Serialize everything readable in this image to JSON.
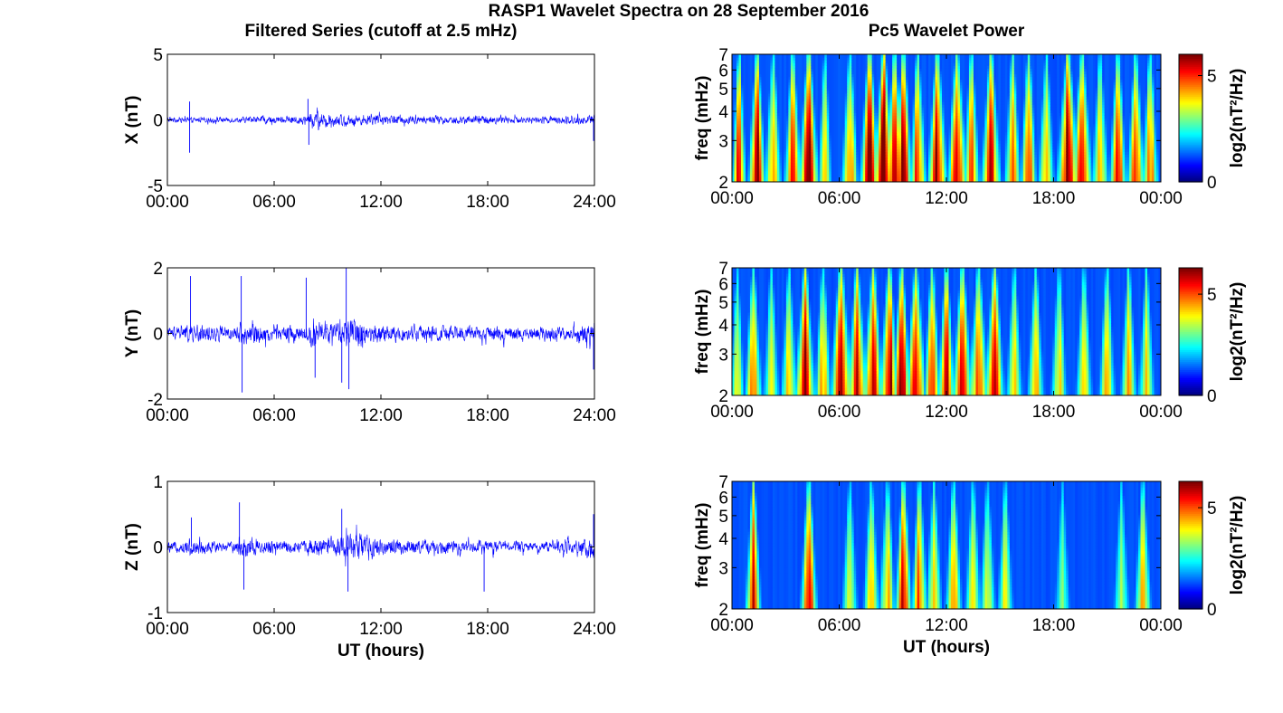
{
  "figure": {
    "title": "RASP1 Wavelet Spectra on 28 September 2016",
    "left_column_title": "Filtered Series (cutoff at 2.5 mHz)",
    "right_column_title": "Pc5 Wavelet Power"
  },
  "colors": {
    "series_line": "#0000ff",
    "axes": "#000000",
    "colormap": "jet"
  },
  "chart_data": [
    {
      "type": "line",
      "component": "X",
      "ylabel": "X (nT)",
      "xlabel": "",
      "xlim": [
        0,
        24
      ],
      "ylim": [
        -5,
        5
      ],
      "yticks": [
        -5,
        0,
        5
      ],
      "xticks": [
        "00:00",
        "06:00",
        "12:00",
        "18:00",
        "24:00"
      ],
      "noise_amplitude_nT": [
        0.25,
        0.25,
        0.25,
        0.25,
        0.3,
        0.35,
        0.35,
        0.4,
        0.8,
        0.6,
        0.5,
        0.45,
        0.4,
        0.4,
        0.35,
        0.35,
        0.4,
        0.4,
        0.35,
        0.3,
        0.3,
        0.35,
        0.4,
        0.45
      ],
      "spikes": [
        {
          "t": 1.25,
          "value": -2.5
        },
        {
          "t": 1.25,
          "value": 1.4
        },
        {
          "t": 7.9,
          "value": 1.6
        },
        {
          "t": 7.95,
          "value": -1.9
        },
        {
          "t": 23.95,
          "value": -1.6
        }
      ]
    },
    {
      "type": "line",
      "component": "Y",
      "ylabel": "Y (nT)",
      "xlabel": "",
      "xlim": [
        0,
        24
      ],
      "ylim": [
        -2,
        2
      ],
      "yticks": [
        -2,
        0,
        2
      ],
      "xticks": [
        "00:00",
        "06:00",
        "12:00",
        "18:00",
        "24:00"
      ],
      "noise_amplitude_nT": [
        0.25,
        0.35,
        0.3,
        0.25,
        0.45,
        0.35,
        0.3,
        0.3,
        0.45,
        0.4,
        0.55,
        0.4,
        0.3,
        0.3,
        0.3,
        0.3,
        0.25,
        0.25,
        0.3,
        0.25,
        0.25,
        0.25,
        0.25,
        0.35
      ],
      "spikes": [
        {
          "t": 1.3,
          "value": 1.75
        },
        {
          "t": 4.15,
          "value": 1.75
        },
        {
          "t": 4.2,
          "value": -1.8
        },
        {
          "t": 7.8,
          "value": 1.7
        },
        {
          "t": 8.3,
          "value": -1.35
        },
        {
          "t": 10.05,
          "value": 2.0
        },
        {
          "t": 9.8,
          "value": -1.5
        },
        {
          "t": 10.2,
          "value": -1.7
        },
        {
          "t": 23.95,
          "value": -1.1
        }
      ]
    },
    {
      "type": "line",
      "component": "Z",
      "ylabel": "Z (nT)",
      "xlabel": "UT (hours)",
      "xlim": [
        0,
        24
      ],
      "ylim": [
        -1,
        1
      ],
      "yticks": [
        -1,
        0,
        1
      ],
      "xticks": [
        "00:00",
        "06:00",
        "12:00",
        "18:00",
        "24:00"
      ],
      "noise_amplitude_nT": [
        0.1,
        0.15,
        0.12,
        0.1,
        0.22,
        0.14,
        0.12,
        0.12,
        0.18,
        0.2,
        0.28,
        0.2,
        0.15,
        0.15,
        0.14,
        0.13,
        0.12,
        0.12,
        0.12,
        0.1,
        0.1,
        0.1,
        0.12,
        0.18
      ],
      "spikes": [
        {
          "t": 1.35,
          "value": 0.45
        },
        {
          "t": 4.05,
          "value": 0.68
        },
        {
          "t": 4.3,
          "value": -0.65
        },
        {
          "t": 9.8,
          "value": 0.58
        },
        {
          "t": 10.15,
          "value": -0.68
        },
        {
          "t": 17.8,
          "value": -0.68
        },
        {
          "t": 23.95,
          "value": 0.5
        }
      ]
    },
    {
      "type": "heatmap",
      "component": "X",
      "ylabel": "freq (mHz)",
      "xlabel": "",
      "xlim": [
        0,
        24
      ],
      "ylim": [
        2,
        7
      ],
      "yscale": "log",
      "yticks": [
        2,
        3,
        4,
        5,
        6,
        7
      ],
      "xticks": [
        "00:00",
        "06:00",
        "12:00",
        "18:00",
        "00:00"
      ],
      "colorbar_label": "log2(nT²/Hz)",
      "colorbar_ticks": [
        0,
        5
      ],
      "clim": [
        0,
        6
      ],
      "bursts": [
        {
          "t": 0.4,
          "power": 5.2,
          "width_h": 0.25
        },
        {
          "t": 1.4,
          "power": 6.0,
          "width_h": 0.3
        },
        {
          "t": 2.3,
          "power": 4.2,
          "width_h": 0.3
        },
        {
          "t": 3.4,
          "power": 5.0,
          "width_h": 0.3
        },
        {
          "t": 4.3,
          "power": 6.0,
          "width_h": 0.35
        },
        {
          "t": 5.2,
          "power": 4.0,
          "width_h": 0.25
        },
        {
          "t": 6.6,
          "power": 4.5,
          "width_h": 0.3
        },
        {
          "t": 7.7,
          "power": 5.8,
          "width_h": 0.35
        },
        {
          "t": 8.5,
          "power": 6.3,
          "width_h": 0.35
        },
        {
          "t": 9.1,
          "power": 6.5,
          "width_h": 0.3
        },
        {
          "t": 9.6,
          "power": 6.0,
          "width_h": 0.3
        },
        {
          "t": 10.4,
          "power": 5.0,
          "width_h": 0.3
        },
        {
          "t": 11.5,
          "power": 5.6,
          "width_h": 0.35
        },
        {
          "t": 12.6,
          "power": 5.5,
          "width_h": 0.35
        },
        {
          "t": 13.4,
          "power": 4.5,
          "width_h": 0.3
        },
        {
          "t": 14.5,
          "power": 5.3,
          "width_h": 0.35
        },
        {
          "t": 15.7,
          "power": 4.2,
          "width_h": 0.3
        },
        {
          "t": 16.6,
          "power": 4.6,
          "width_h": 0.3
        },
        {
          "t": 17.6,
          "power": 4.0,
          "width_h": 0.3
        },
        {
          "t": 18.8,
          "power": 5.8,
          "width_h": 0.4
        },
        {
          "t": 19.6,
          "power": 5.6,
          "width_h": 0.35
        },
        {
          "t": 20.6,
          "power": 4.2,
          "width_h": 0.3
        },
        {
          "t": 21.6,
          "power": 5.5,
          "width_h": 0.3
        },
        {
          "t": 22.6,
          "power": 5.2,
          "width_h": 0.3
        },
        {
          "t": 23.4,
          "power": 4.5,
          "width_h": 0.3
        }
      ]
    },
    {
      "type": "heatmap",
      "component": "Y",
      "ylabel": "freq (mHz)",
      "xlabel": "",
      "xlim": [
        0,
        24
      ],
      "ylim": [
        2,
        7
      ],
      "yscale": "log",
      "yticks": [
        2,
        3,
        4,
        5,
        6,
        7
      ],
      "xticks": [
        "00:00",
        "06:00",
        "12:00",
        "18:00",
        "00:00"
      ],
      "colorbar_label": "log2(nT²/Hz)",
      "colorbar_ticks": [
        0,
        5
      ],
      "clim": [
        0,
        6.3
      ],
      "bursts": [
        {
          "t": 0.3,
          "power": 3.8,
          "width_h": 0.25
        },
        {
          "t": 1.2,
          "power": 5.0,
          "width_h": 0.3
        },
        {
          "t": 2.2,
          "power": 3.5,
          "width_h": 0.3
        },
        {
          "t": 3.2,
          "power": 4.0,
          "width_h": 0.3
        },
        {
          "t": 4.1,
          "power": 6.3,
          "width_h": 0.35
        },
        {
          "t": 5.1,
          "power": 4.2,
          "width_h": 0.3
        },
        {
          "t": 6.1,
          "power": 5.4,
          "width_h": 0.4
        },
        {
          "t": 7.0,
          "power": 5.6,
          "width_h": 0.35
        },
        {
          "t": 7.9,
          "power": 5.4,
          "width_h": 0.35
        },
        {
          "t": 8.8,
          "power": 6.0,
          "width_h": 0.35
        },
        {
          "t": 9.5,
          "power": 6.3,
          "width_h": 0.3
        },
        {
          "t": 10.3,
          "power": 5.8,
          "width_h": 0.35
        },
        {
          "t": 11.2,
          "power": 5.0,
          "width_h": 0.3
        },
        {
          "t": 12.0,
          "power": 5.7,
          "width_h": 0.3
        },
        {
          "t": 12.9,
          "power": 5.6,
          "width_h": 0.35
        },
        {
          "t": 13.8,
          "power": 5.2,
          "width_h": 0.35
        },
        {
          "t": 14.7,
          "power": 5.4,
          "width_h": 0.35
        },
        {
          "t": 15.8,
          "power": 4.0,
          "width_h": 0.3
        },
        {
          "t": 17.0,
          "power": 4.3,
          "width_h": 0.3
        },
        {
          "t": 18.3,
          "power": 3.8,
          "width_h": 0.3
        },
        {
          "t": 19.7,
          "power": 4.0,
          "width_h": 0.3
        },
        {
          "t": 21.0,
          "power": 4.0,
          "width_h": 0.3
        },
        {
          "t": 22.2,
          "power": 4.2,
          "width_h": 0.3
        },
        {
          "t": 23.2,
          "power": 4.0,
          "width_h": 0.3
        }
      ]
    },
    {
      "type": "heatmap",
      "component": "Z",
      "ylabel": "freq (mHz)",
      "xlabel": "UT (hours)",
      "xlim": [
        0,
        24
      ],
      "ylim": [
        2,
        7
      ],
      "yscale": "log",
      "yticks": [
        2,
        3,
        4,
        5,
        6,
        7
      ],
      "xticks": [
        "00:00",
        "06:00",
        "12:00",
        "18:00",
        "00:00"
      ],
      "colorbar_label": "log2(nT²/Hz)",
      "colorbar_ticks": [
        0,
        5
      ],
      "clim": [
        0,
        6.3
      ],
      "bursts": [
        {
          "t": 1.2,
          "power": 5.5,
          "width_h": 0.28
        },
        {
          "t": 4.3,
          "power": 5.8,
          "width_h": 0.3
        },
        {
          "t": 6.6,
          "power": 3.5,
          "width_h": 0.3
        },
        {
          "t": 7.8,
          "power": 3.8,
          "width_h": 0.3
        },
        {
          "t": 8.7,
          "power": 4.0,
          "width_h": 0.3
        },
        {
          "t": 9.6,
          "power": 5.5,
          "width_h": 0.3
        },
        {
          "t": 10.5,
          "power": 4.8,
          "width_h": 0.3
        },
        {
          "t": 11.3,
          "power": 3.8,
          "width_h": 0.3
        },
        {
          "t": 12.4,
          "power": 4.6,
          "width_h": 0.3
        },
        {
          "t": 13.5,
          "power": 3.5,
          "width_h": 0.3
        },
        {
          "t": 14.3,
          "power": 3.6,
          "width_h": 0.3
        },
        {
          "t": 15.3,
          "power": 3.4,
          "width_h": 0.3
        },
        {
          "t": 18.5,
          "power": 2.6,
          "width_h": 0.3
        },
        {
          "t": 21.8,
          "power": 3.0,
          "width_h": 0.3
        },
        {
          "t": 23.0,
          "power": 4.3,
          "width_h": 0.3
        }
      ]
    }
  ]
}
